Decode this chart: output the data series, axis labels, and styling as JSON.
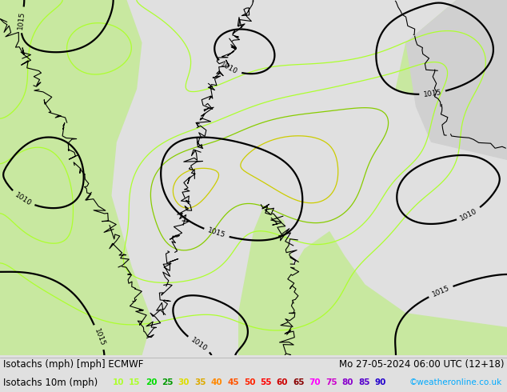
{
  "title_line1": "Isotachs (mph) [mph] ECMWF",
  "title_line2": "Mo 27-05-2024 06:00 UTC (12+18)",
  "legend_label": "Isotachs 10m (mph)",
  "legend_values": [
    10,
    15,
    20,
    25,
    30,
    35,
    40,
    45,
    50,
    55,
    60,
    65,
    70,
    75,
    80,
    85,
    90
  ],
  "legend_colors": [
    "#adff2f",
    "#adff2f",
    "#00dd00",
    "#009900",
    "#dddd00",
    "#ddaa00",
    "#ff8800",
    "#ff5500",
    "#ff2200",
    "#ff0000",
    "#cc0000",
    "#880000",
    "#ff00ff",
    "#cc00cc",
    "#8800cc",
    "#5500cc",
    "#2200cc"
  ],
  "watermark": "©weatheronline.co.uk",
  "title_fontsize": 8.5,
  "legend_fontsize": 8.5,
  "watermark_color": "#00aaff",
  "fig_width": 6.34,
  "fig_height": 4.9,
  "dpi": 100,
  "bg_color": "#e0e0e0",
  "map_white": "#f8f8f8",
  "map_green": "#c8e8a0",
  "map_gray": "#d0d0d0",
  "map_darkgray": "#b8b8b8"
}
